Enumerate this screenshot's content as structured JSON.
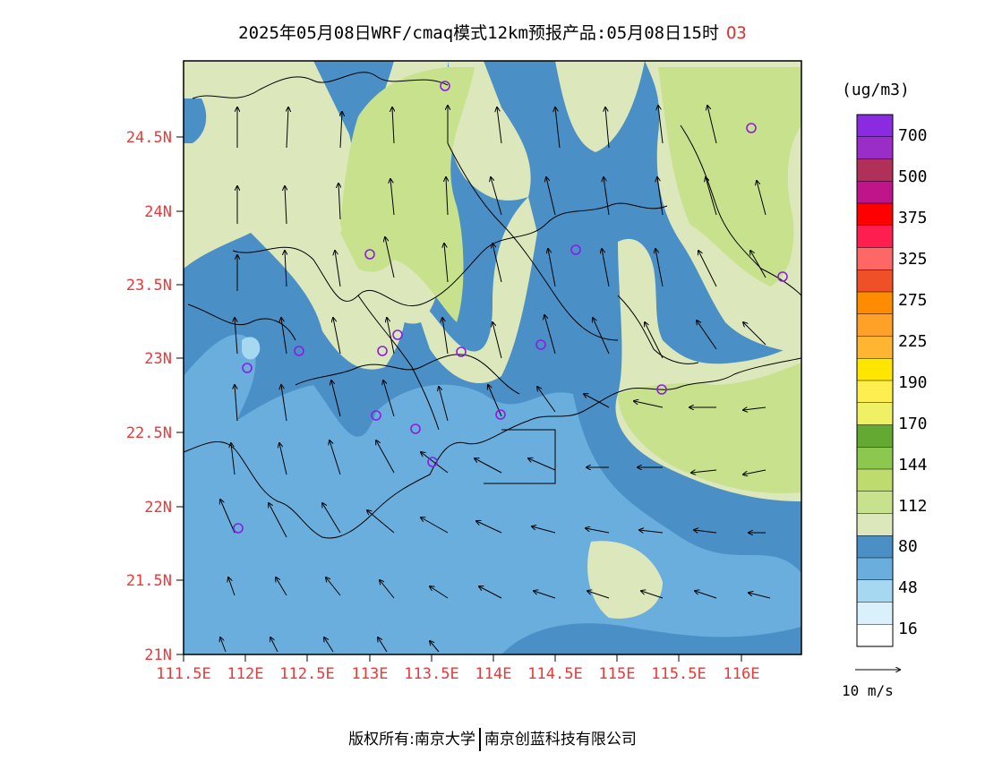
{
  "header": {
    "title": "2025年05月08日WRF/cmaq模式12km预报产品:05月08日15时",
    "pollutant": "O3"
  },
  "axes": {
    "lat_labels": [
      "24.5N",
      "24N",
      "23.5N",
      "23N",
      "22.5N",
      "22N",
      "21.5N",
      "21N"
    ],
    "lon_labels": [
      "111.5E",
      "112E",
      "112.5E",
      "113E",
      "113.5E",
      "114E",
      "114.5E",
      "115E",
      "115.5E",
      "116E"
    ]
  },
  "colorbar": {
    "unit": "(ug/m3)",
    "labels": [
      "700",
      "500",
      "375",
      "325",
      "275",
      "225",
      "190",
      "170",
      "144",
      "112",
      "80",
      "48",
      "16"
    ],
    "colors": [
      "#8a2be2",
      "#9a2cc8",
      "#b0305a",
      "#c0148a",
      "#ff0000",
      "#ff1e50",
      "#ff6666",
      "#f05028",
      "#ff8c00",
      "#ffa028",
      "#ffb432",
      "#ffe600",
      "#ffee50",
      "#f0f064",
      "#64aa32",
      "#8cc850",
      "#bedc6e",
      "#c8e18c",
      "#dce8bc",
      "#4a8fc6",
      "#6aaede",
      "#a6d8f2",
      "#daf0fa",
      "#ffffff"
    ]
  },
  "legend": {
    "wind_ref": "10 m/s"
  },
  "stations": 19,
  "footer": {
    "left": "版权所有:南京大学",
    "right": "南京创蓝科技有限公司"
  }
}
